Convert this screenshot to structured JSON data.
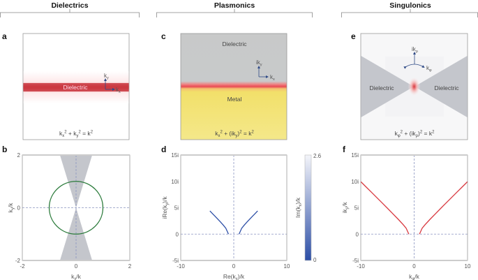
{
  "headers": [
    "Dielectrics",
    "Plasmonics",
    "Singulonics"
  ],
  "panel_letters": {
    "a": "a",
    "b": "b",
    "c": "c",
    "d": "d",
    "e": "e",
    "f": "f"
  },
  "colors": {
    "red": "#d8383f",
    "green": "#2a7a3a",
    "blue": "#2c4ea6",
    "gray": "#c4c6cc",
    "yellow": "#f2e06a",
    "dashed": "#8a94c0",
    "arrow": "#2f4a86"
  },
  "panel_a": {
    "material": "Dielectric",
    "axis_v": "k_y",
    "axis_h": "k_x",
    "equation": "k_x^2 + k_y^2 = k^2"
  },
  "panel_c": {
    "top_material": "Dielectric",
    "bottom_material": "Metal",
    "axis_v": "ik_y",
    "axis_h": "k_x",
    "equation": "k_x^2 + (ik_y)^2 = k^2"
  },
  "panel_e": {
    "left_material": "Dielectric",
    "right_material": "Dielectric",
    "axis_v": "ik_ρ",
    "axis_arc": "k_φ",
    "equation": "k_φ^2 + (ik_ρ)^2 = k^2"
  },
  "chart_data": [
    {
      "panel": "b",
      "type": "line",
      "xlabel": "k_x/k",
      "ylabel": "k_y/k",
      "xlim": [
        -2,
        2
      ],
      "ylim": [
        -2,
        2
      ],
      "xticks": [
        "-2",
        "0",
        "2"
      ],
      "yticks": [
        "-2",
        "0",
        "2"
      ],
      "series": [
        {
          "shape": "circle",
          "radius": 1,
          "color": "#2a7a3a"
        }
      ],
      "shaded_cone": {
        "half_width_at_edge": 0.6,
        "color": "#c4c6cc"
      }
    },
    {
      "panel": "d",
      "type": "line",
      "xlabel": "Re(k_x)/k",
      "ylabel": "iRe(k_y)/k",
      "xlim": [
        -10,
        10
      ],
      "ylim": [
        -5,
        15
      ],
      "xticks": [
        "-10",
        "0",
        "10"
      ],
      "yticks": [
        "-5i",
        "0",
        "5i",
        "10i",
        "15i"
      ],
      "series": [
        {
          "x": [
            1,
            1.5,
            2,
            2.5,
            3,
            3.5,
            4,
            4.5
          ],
          "y": [
            0,
            1.12,
            1.73,
            2.29,
            2.83,
            3.35,
            3.87,
            4.39
          ],
          "mirrored": true,
          "color": "#2c4ea6"
        }
      ],
      "colorbar": {
        "label": "Im(k_x)/k",
        "min": "0",
        "max": "2.6"
      }
    },
    {
      "panel": "f",
      "type": "line",
      "xlabel": "k_φ/k",
      "ylabel": "ik_ρ/k",
      "xlim": [
        -10,
        10
      ],
      "ylim": [
        -5,
        15
      ],
      "xticks": [
        "-10",
        "0",
        "10"
      ],
      "yticks": [
        "-5i",
        "0",
        "5i",
        "10i",
        "15i"
      ],
      "series": [
        {
          "x": [
            1,
            1.5,
            2,
            3,
            4,
            5,
            6,
            7,
            8,
            9,
            10
          ],
          "y": [
            0,
            1.12,
            1.73,
            2.83,
            3.87,
            4.9,
            5.92,
            6.93,
            7.94,
            8.94,
            9.95
          ],
          "mirrored": true,
          "color": "#d8383f"
        }
      ]
    }
  ]
}
